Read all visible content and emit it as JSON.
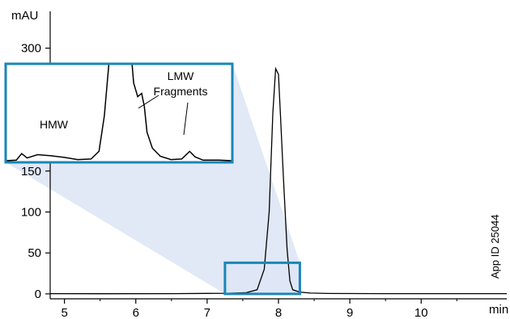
{
  "chart_data": {
    "type": "line",
    "title": "",
    "xlabel": "",
    "ylabel": "",
    "x_unit": "min",
    "y_unit": "mAU",
    "xlim": [
      4.8,
      11.2
    ],
    "ylim": [
      -6,
      345
    ],
    "x_ticks": [
      5,
      6,
      7,
      8,
      9,
      10
    ],
    "y_ticks": [
      0,
      50,
      100,
      150,
      300
    ],
    "grid": false,
    "legend": "none",
    "line_color": "#000000",
    "accent_color": "#1a86b8",
    "series": [
      {
        "values": [
          {
            "x": 4.8,
            "y": 0.3
          },
          {
            "x": 5.5,
            "y": 0.2
          },
          {
            "x": 6.5,
            "y": 0.3
          },
          {
            "x": 7.0,
            "y": 0.6
          },
          {
            "x": 7.3,
            "y": 0.8
          },
          {
            "x": 7.55,
            "y": 1.5
          },
          {
            "x": 7.7,
            "y": 5
          },
          {
            "x": 7.8,
            "y": 30
          },
          {
            "x": 7.87,
            "y": 100
          },
          {
            "x": 7.92,
            "y": 220
          },
          {
            "x": 7.96,
            "y": 275
          },
          {
            "x": 8.0,
            "y": 268
          },
          {
            "x": 8.03,
            "y": 215
          },
          {
            "x": 8.07,
            "y": 140
          },
          {
            "x": 8.12,
            "y": 55
          },
          {
            "x": 8.16,
            "y": 16
          },
          {
            "x": 8.2,
            "y": 5
          },
          {
            "x": 8.3,
            "y": 2.2
          },
          {
            "x": 8.45,
            "y": 1.0
          },
          {
            "x": 8.7,
            "y": 0.5
          },
          {
            "x": 9.5,
            "y": 0.3
          },
          {
            "x": 11.2,
            "y": 0.3
          }
        ]
      }
    ],
    "zoom_region": {
      "x": [
        7.25,
        8.3
      ],
      "y": [
        0,
        38
      ]
    },
    "inset": {
      "labels": [
        "HMW",
        "LMW",
        "Fragments"
      ],
      "trace": [
        {
          "x": 7.25,
          "y": 2.3
        },
        {
          "x": 7.29,
          "y": 2.4
        },
        {
          "x": 7.31,
          "y": 3.6
        },
        {
          "x": 7.33,
          "y": 2.8
        },
        {
          "x": 7.37,
          "y": 3.4
        },
        {
          "x": 7.42,
          "y": 3.2
        },
        {
          "x": 7.47,
          "y": 2.9
        },
        {
          "x": 7.52,
          "y": 2.5
        },
        {
          "x": 7.57,
          "y": 2.6
        },
        {
          "x": 7.6,
          "y": 4.0
        },
        {
          "x": 7.62,
          "y": 10.5
        },
        {
          "x": 7.637,
          "y": 20
        },
        {
          "x": 7.724,
          "y": 20
        },
        {
          "x": 7.73,
          "y": 16.5
        },
        {
          "x": 7.745,
          "y": 14.0
        },
        {
          "x": 7.76,
          "y": 14.6
        },
        {
          "x": 7.77,
          "y": 12.2
        },
        {
          "x": 7.78,
          "y": 7.5
        },
        {
          "x": 7.8,
          "y": 4.6
        },
        {
          "x": 7.83,
          "y": 3.1
        },
        {
          "x": 7.87,
          "y": 2.5
        },
        {
          "x": 7.91,
          "y": 2.6
        },
        {
          "x": 7.94,
          "y": 4.0
        },
        {
          "x": 7.96,
          "y": 3.0
        },
        {
          "x": 7.99,
          "y": 2.4
        },
        {
          "x": 8.05,
          "y": 2.4
        },
        {
          "x": 8.1,
          "y": 2.3
        }
      ],
      "x_range": [
        7.25,
        8.1
      ],
      "y_range": [
        2.0,
        20.0
      ]
    },
    "side_label": "App ID 25044"
  }
}
